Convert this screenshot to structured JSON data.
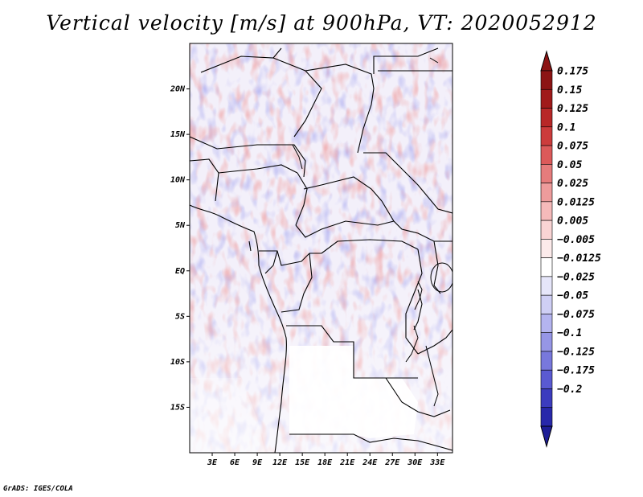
{
  "title": "Vertical velocity [m/s] at 900hPa, VT: 2020052912",
  "credit": "GrADS: IGES/COLA",
  "map": {
    "lon_range": [
      0,
      35
    ],
    "lat_range": [
      -20,
      25
    ],
    "lat_ticks": [
      {
        "value": 20,
        "label": "20N"
      },
      {
        "value": 15,
        "label": "15N"
      },
      {
        "value": 10,
        "label": "10N"
      },
      {
        "value": 5,
        "label": "5N"
      },
      {
        "value": 0,
        "label": "EQ"
      },
      {
        "value": -5,
        "label": "5S"
      },
      {
        "value": -10,
        "label": "10S"
      },
      {
        "value": -15,
        "label": "15S"
      }
    ],
    "lon_ticks": [
      {
        "value": 3,
        "label": "3E"
      },
      {
        "value": 6,
        "label": "6E"
      },
      {
        "value": 9,
        "label": "9E"
      },
      {
        "value": 12,
        "label": "12E"
      },
      {
        "value": 15,
        "label": "15E"
      },
      {
        "value": 18,
        "label": "18E"
      },
      {
        "value": 21,
        "label": "21E"
      },
      {
        "value": 24,
        "label": "24E"
      },
      {
        "value": 27,
        "label": "27E"
      },
      {
        "value": 30,
        "label": "30E"
      },
      {
        "value": 33,
        "label": "33E"
      }
    ]
  },
  "colorbar": {
    "levels": [
      {
        "label": "0.175",
        "color": "#a01a1a"
      },
      {
        "label": "0.15",
        "color": "#b82828"
      },
      {
        "label": "0.125",
        "color": "#cc3c3c"
      },
      {
        "label": "0.1",
        "color": "#dc5a5a"
      },
      {
        "label": "0.075",
        "color": "#e67c7c"
      },
      {
        "label": "0.05",
        "color": "#ee9c9c"
      },
      {
        "label": "0.025",
        "color": "#f5baba"
      },
      {
        "label": "0.0125",
        "color": "#f9d4d4"
      },
      {
        "label": "0.005",
        "color": "#fcebeb"
      },
      {
        "label": "−0.005",
        "color": "#ffffff"
      },
      {
        "label": "−0.0125",
        "color": "#e6e6fa"
      },
      {
        "label": "−0.025",
        "color": "#cfcff5"
      },
      {
        "label": "−0.05",
        "color": "#b4b4ef"
      },
      {
        "label": "−0.075",
        "color": "#9696e6"
      },
      {
        "label": "−0.1",
        "color": "#7878dc"
      },
      {
        "label": "−0.125",
        "color": "#5a5ad2"
      },
      {
        "label": "−0.175",
        "color": "#3c3cbe"
      },
      {
        "label": "−0.2",
        "color": "#2828aa"
      }
    ],
    "top_color": "#8c1414",
    "bottom_color": "#1e1e96"
  }
}
